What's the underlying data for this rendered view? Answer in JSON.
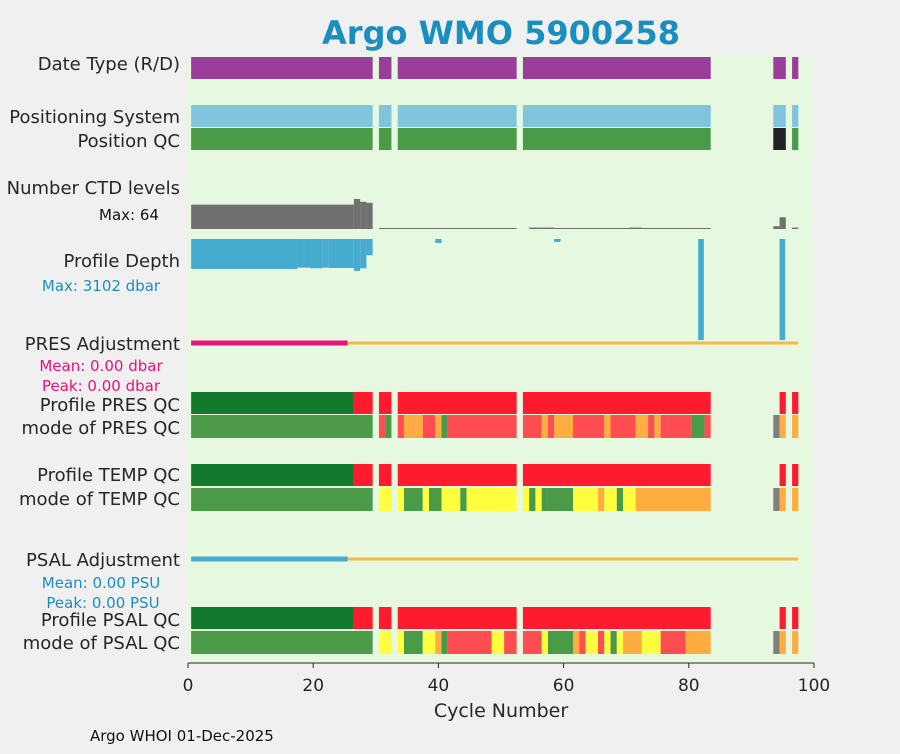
{
  "chart_data": {
    "type": "table",
    "title": "Argo WMO 5900258",
    "xlabel": "Cycle Number",
    "xlim": [
      0,
      100
    ],
    "xticks": [
      0,
      20,
      40,
      60,
      80,
      100
    ],
    "footer": "Argo WHOI 01-Dec-2025",
    "row_labels": {
      "date_type": "Date Type (R/D)",
      "positioning_system": "Positioning System",
      "position_qc": "Position QC",
      "num_ctd_levels": "Number CTD levels",
      "profile_depth": "Profile Depth",
      "pres_adjustment": "PRES Adjustment",
      "profile_pres_qc": "Profile PRES QC",
      "mode_pres_qc": "mode of PRES QC",
      "profile_temp_qc": "Profile TEMP QC",
      "mode_temp_qc": "mode of TEMP QC",
      "psal_adjustment": "PSAL Adjustment",
      "profile_psal_qc": "Profile PSAL QC",
      "mode_psal_qc": "mode of PSAL QC"
    },
    "annotations": {
      "ctd_max": "Max: 64",
      "depth_max": "Max: 3102 dbar",
      "pres_mean": "Mean: 0.00 dbar",
      "pres_peak": "Peak: 0.00 dbar",
      "psal_mean": "Mean: 0.00 PSU",
      "psal_peak": "Peak: 0.00 PSU"
    },
    "colors": {
      "title": "#1a8fbf",
      "plot_bg": "#e6f9e0",
      "date_type": "#9b3d9b",
      "positioning_system": "#80c4dd",
      "qc_good": "#4a9a48",
      "qc_bad_dark": "#222222",
      "profile_grade_a": "#137a2d",
      "profile_fail": "#ff1a2e",
      "ctd_bar": "#707070",
      "depth_bar": "#45acd0",
      "pres_adj_line": "#e8127a",
      "psal_adj_line": "#45acd0",
      "adj_after": "#f5b94a",
      "pres_ann": "#e8127a",
      "psal_ann": "#1a8fbf",
      "depth_ann": "#1a8fbf",
      "mode_orange": "#ffac40",
      "mode_red": "#ff4d52",
      "mode_yellow": "#ffff40",
      "mode_gray": "#808080"
    },
    "present_cycles": [
      [
        1,
        29
      ],
      [
        31,
        32
      ],
      [
        34,
        52
      ],
      [
        54,
        83
      ],
      [
        94,
        95
      ],
      [
        97,
        97
      ]
    ],
    "position_qc": [
      {
        "range": [
          1,
          29
        ],
        "value": "good"
      },
      {
        "range": [
          31,
          32
        ],
        "value": "good"
      },
      {
        "range": [
          34,
          52
        ],
        "value": "good"
      },
      {
        "range": [
          54,
          83
        ],
        "value": "good"
      },
      {
        "range": [
          94,
          95
        ],
        "value": "bad"
      },
      {
        "range": [
          97,
          97
        ],
        "value": "good"
      }
    ],
    "ctd_levels": [
      {
        "range": [
          1,
          26
        ],
        "value": 52
      },
      {
        "range": [
          27,
          27
        ],
        "value": 64
      },
      {
        "range": [
          28,
          28
        ],
        "value": 58
      },
      {
        "range": [
          29,
          29
        ],
        "value": 56
      },
      {
        "range": [
          31,
          52
        ],
        "value": 2
      },
      {
        "range": [
          40,
          40
        ],
        "value": 2
      },
      {
        "range": [
          55,
          56
        ],
        "value": 3
      },
      {
        "range": [
          57,
          58
        ],
        "value": 3
      },
      {
        "range": [
          59,
          83
        ],
        "value": 2
      },
      {
        "range": [
          71,
          72
        ],
        "value": 3
      },
      {
        "range": [
          94,
          94
        ],
        "value": 6
      },
      {
        "range": [
          95,
          95
        ],
        "value": 25
      },
      {
        "range": [
          97,
          97
        ],
        "value": 3
      }
    ],
    "profile_depth": [
      {
        "range": [
          1,
          17
        ],
        "value": 920
      },
      {
        "range": [
          18,
          19
        ],
        "value": 880
      },
      {
        "range": [
          20,
          21
        ],
        "value": 900
      },
      {
        "range": [
          22,
          22
        ],
        "value": 880
      },
      {
        "range": [
          23,
          26
        ],
        "value": 890
      },
      {
        "range": [
          27,
          27
        ],
        "value": 980
      },
      {
        "range": [
          28,
          28
        ],
        "value": 900
      },
      {
        "range": [
          29,
          29
        ],
        "value": 500
      },
      {
        "range": [
          40,
          40
        ],
        "value": 120
      },
      {
        "range": [
          59,
          59
        ],
        "value": 60
      },
      {
        "range": [
          82,
          82
        ],
        "value": 3102
      },
      {
        "range": [
          95,
          95
        ],
        "value": 3102
      }
    ],
    "pres_adjustment": [
      {
        "range": [
          1,
          25
        ],
        "status": "adjusted"
      },
      {
        "range": [
          26,
          97
        ],
        "status": "later"
      }
    ],
    "psal_adjustment": [
      {
        "range": [
          1,
          25
        ],
        "status": "adjusted"
      },
      {
        "range": [
          26,
          97
        ],
        "status": "later"
      }
    ],
    "profile_qc": [
      {
        "range": [
          1,
          26
        ],
        "grade": "A"
      },
      {
        "range": [
          27,
          29
        ],
        "grade": "F"
      },
      {
        "range": [
          31,
          32
        ],
        "grade": "F"
      },
      {
        "range": [
          34,
          52
        ],
        "grade": "F"
      },
      {
        "range": [
          54,
          83
        ],
        "grade": "F"
      },
      {
        "range": [
          95,
          95
        ],
        "grade": "F"
      },
      {
        "range": [
          97,
          97
        ],
        "grade": "F"
      }
    ],
    "mode_pres_qc": [
      {
        "range": [
          1,
          29
        ],
        "qc": "good"
      },
      {
        "range": [
          31,
          31
        ],
        "qc": "red"
      },
      {
        "range": [
          32,
          32
        ],
        "qc": "good"
      },
      {
        "range": [
          34,
          34
        ],
        "qc": "red"
      },
      {
        "range": [
          35,
          37
        ],
        "qc": "orange"
      },
      {
        "range": [
          38,
          39
        ],
        "qc": "red"
      },
      {
        "range": [
          40,
          40
        ],
        "qc": "orange"
      },
      {
        "range": [
          41,
          41
        ],
        "qc": "good"
      },
      {
        "range": [
          42,
          52
        ],
        "qc": "red"
      },
      {
        "range": [
          54,
          56
        ],
        "qc": "red"
      },
      {
        "range": [
          57,
          57
        ],
        "qc": "orange"
      },
      {
        "range": [
          58,
          58
        ],
        "qc": "red"
      },
      {
        "range": [
          59,
          61
        ],
        "qc": "orange"
      },
      {
        "range": [
          62,
          66
        ],
        "qc": "red"
      },
      {
        "range": [
          67,
          67
        ],
        "qc": "orange"
      },
      {
        "range": [
          68,
          71
        ],
        "qc": "red"
      },
      {
        "range": [
          72,
          73
        ],
        "qc": "orange"
      },
      {
        "range": [
          74,
          74
        ],
        "qc": "red"
      },
      {
        "range": [
          75,
          75
        ],
        "qc": "orange"
      },
      {
        "range": [
          76,
          80
        ],
        "qc": "red"
      },
      {
        "range": [
          81,
          82
        ],
        "qc": "good"
      },
      {
        "range": [
          83,
          83
        ],
        "qc": "red"
      },
      {
        "range": [
          94,
          94
        ],
        "qc": "gray"
      },
      {
        "range": [
          95,
          95
        ],
        "qc": "orange"
      },
      {
        "range": [
          97,
          97
        ],
        "qc": "orange"
      }
    ],
    "mode_temp_qc": [
      {
        "range": [
          1,
          29
        ],
        "qc": "good"
      },
      {
        "range": [
          31,
          32
        ],
        "qc": "yellow"
      },
      {
        "range": [
          34,
          34
        ],
        "qc": "yellow"
      },
      {
        "range": [
          35,
          37
        ],
        "qc": "good"
      },
      {
        "range": [
          38,
          38
        ],
        "qc": "yellow"
      },
      {
        "range": [
          39,
          40
        ],
        "qc": "good"
      },
      {
        "range": [
          41,
          41
        ],
        "qc": "yellow"
      },
      {
        "range": [
          42,
          43
        ],
        "qc": "yellow"
      },
      {
        "range": [
          44,
          44
        ],
        "qc": "good"
      },
      {
        "range": [
          45,
          52
        ],
        "qc": "yellow"
      },
      {
        "range": [
          54,
          54
        ],
        "qc": "yellow"
      },
      {
        "range": [
          55,
          55
        ],
        "qc": "good"
      },
      {
        "range": [
          56,
          56
        ],
        "qc": "yellow"
      },
      {
        "range": [
          57,
          57
        ],
        "qc": "good"
      },
      {
        "range": [
          58,
          61
        ],
        "qc": "good"
      },
      {
        "range": [
          62,
          62
        ],
        "qc": "yellow"
      },
      {
        "range": [
          63,
          65
        ],
        "qc": "yellow"
      },
      {
        "range": [
          66,
          66
        ],
        "qc": "orange"
      },
      {
        "range": [
          67,
          68
        ],
        "qc": "yellow"
      },
      {
        "range": [
          69,
          69
        ],
        "qc": "good"
      },
      {
        "range": [
          70,
          71
        ],
        "qc": "yellow"
      },
      {
        "range": [
          72,
          83
        ],
        "qc": "orange"
      },
      {
        "range": [
          94,
          94
        ],
        "qc": "gray"
      },
      {
        "range": [
          95,
          95
        ],
        "qc": "orange"
      },
      {
        "range": [
          97,
          97
        ],
        "qc": "orange"
      }
    ],
    "mode_psal_qc": [
      {
        "range": [
          1,
          29
        ],
        "qc": "good"
      },
      {
        "range": [
          31,
          32
        ],
        "qc": "yellow"
      },
      {
        "range": [
          34,
          34
        ],
        "qc": "yellow"
      },
      {
        "range": [
          35,
          37
        ],
        "qc": "good"
      },
      {
        "range": [
          38,
          39
        ],
        "qc": "yellow"
      },
      {
        "range": [
          40,
          40
        ],
        "qc": "orange"
      },
      {
        "range": [
          41,
          41
        ],
        "qc": "good"
      },
      {
        "range": [
          42,
          48
        ],
        "qc": "red"
      },
      {
        "range": [
          49,
          50
        ],
        "qc": "yellow"
      },
      {
        "range": [
          51,
          52
        ],
        "qc": "red"
      },
      {
        "range": [
          54,
          56
        ],
        "qc": "red"
      },
      {
        "range": [
          57,
          57
        ],
        "qc": "yellow"
      },
      {
        "range": [
          58,
          61
        ],
        "qc": "good"
      },
      {
        "range": [
          62,
          62
        ],
        "qc": "orange"
      },
      {
        "range": [
          63,
          63
        ],
        "qc": "red"
      },
      {
        "range": [
          64,
          65
        ],
        "qc": "yellow"
      },
      {
        "range": [
          66,
          66
        ],
        "qc": "red"
      },
      {
        "range": [
          67,
          67
        ],
        "qc": "yellow"
      },
      {
        "range": [
          68,
          68
        ],
        "qc": "good"
      },
      {
        "range": [
          69,
          69
        ],
        "qc": "yellow"
      },
      {
        "range": [
          70,
          72
        ],
        "qc": "orange"
      },
      {
        "range": [
          73,
          75
        ],
        "qc": "yellow"
      },
      {
        "range": [
          76,
          79
        ],
        "qc": "red"
      },
      {
        "range": [
          80,
          83
        ],
        "qc": "orange"
      },
      {
        "range": [
          94,
          94
        ],
        "qc": "gray"
      },
      {
        "range": [
          95,
          95
        ],
        "qc": "orange"
      },
      {
        "range": [
          97,
          97
        ],
        "qc": "orange"
      }
    ]
  }
}
